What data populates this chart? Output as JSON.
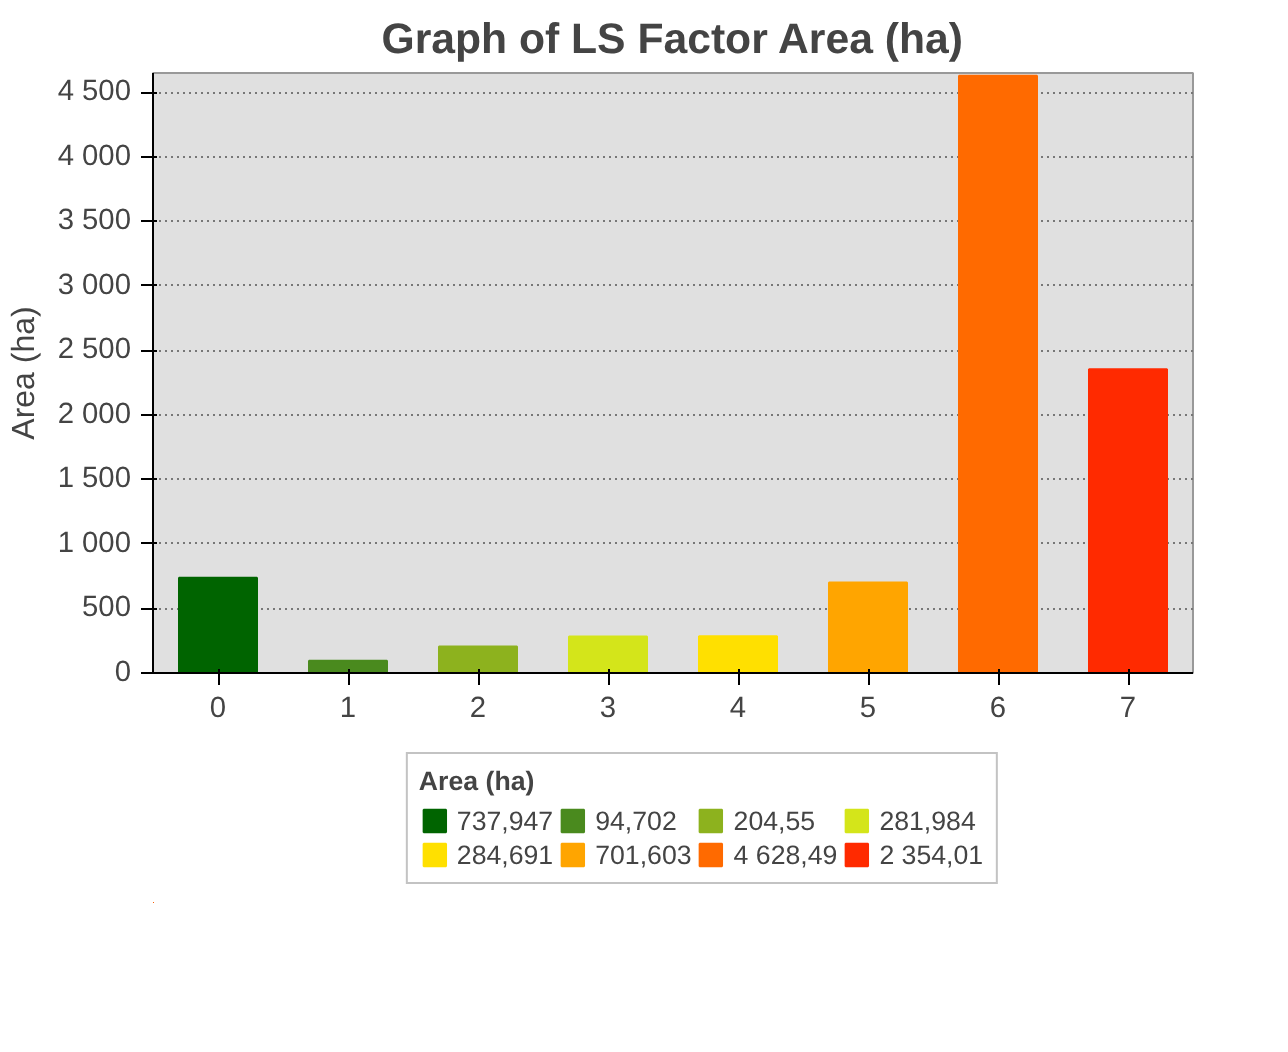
{
  "chart_data": {
    "type": "bar",
    "title": "Graph of LS Factor Area (ha)",
    "ylabel": "Area (ha)",
    "legend_title": "Area (ha)",
    "categories": [
      "0",
      "1",
      "2",
      "3",
      "4",
      "5",
      "6",
      "7"
    ],
    "series": [
      {
        "name": "737,947",
        "color": "#006400",
        "values": [
          737.947,
          null,
          null,
          null,
          null,
          null,
          null,
          null
        ]
      },
      {
        "name": "94,702",
        "color": "#4a8a1e",
        "values": [
          null,
          94.702,
          null,
          null,
          null,
          null,
          null,
          null
        ]
      },
      {
        "name": "204,55",
        "color": "#8db21e",
        "values": [
          null,
          null,
          204.55,
          null,
          null,
          null,
          null,
          null
        ]
      },
      {
        "name": "281,984",
        "color": "#d4e51a",
        "values": [
          null,
          null,
          null,
          281.984,
          null,
          null,
          null,
          null
        ]
      },
      {
        "name": "284,691",
        "color": "#ffe000",
        "values": [
          null,
          null,
          null,
          null,
          284.691,
          null,
          null,
          null
        ]
      },
      {
        "name": "701,603",
        "color": "#ffa500",
        "values": [
          null,
          null,
          null,
          null,
          null,
          701.603,
          null,
          null
        ]
      },
      {
        "name": "4 628,49",
        "color": "#ff6a00",
        "values": [
          null,
          null,
          null,
          null,
          null,
          null,
          4628.49,
          null
        ]
      },
      {
        "name": "2 354,01",
        "color": "#ff2a00",
        "values": [
          null,
          null,
          null,
          null,
          null,
          null,
          null,
          2354.01
        ]
      }
    ],
    "ylim": [
      0,
      4650
    ],
    "yticks": [
      0,
      500,
      {
        "value": 1000,
        "label": "1 000"
      },
      {
        "value": 1500,
        "label": "1 500"
      },
      {
        "value": 2000,
        "label": "2 000"
      },
      {
        "value": 2500,
        "label": "2 500"
      },
      {
        "value": 3000,
        "label": "3 000"
      },
      {
        "value": 3500,
        "label": "3 500"
      },
      {
        "value": 4000,
        "label": "4 000"
      },
      {
        "value": 4500,
        "label": "4 500"
      }
    ],
    "grid": "y",
    "legend": "bottom"
  }
}
